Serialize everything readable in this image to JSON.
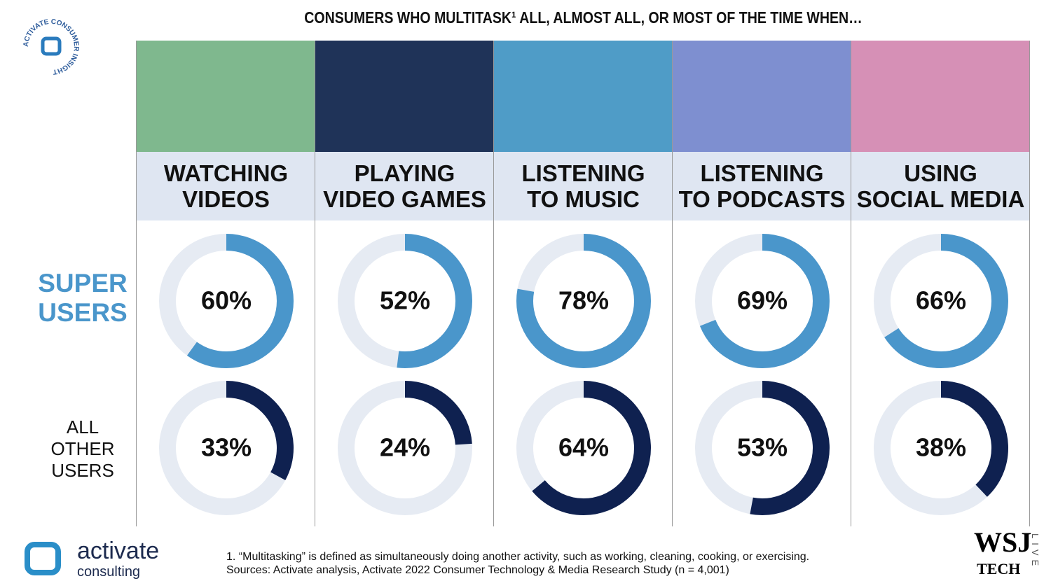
{
  "chart_data": {
    "type": "donut",
    "title": "CONSUMERS WHO MULTITASK¹ ALL, ALMOST ALL, OR MOST OF THE TIME WHEN…",
    "categories": [
      "WATCHING\nVIDEOS",
      "PLAYING\nVIDEO GAMES",
      "LISTENING\nTO MUSIC",
      "LISTENING\nTO PODCASTS",
      "USING\nSOCIAL MEDIA"
    ],
    "series": [
      {
        "name": "SUPER\nUSERS",
        "color": "#4a96cb",
        "values": [
          60,
          52,
          78,
          69,
          66
        ],
        "value_labels": [
          "60%",
          "52%",
          "78%",
          "69%",
          "66%"
        ]
      },
      {
        "name": "ALL\nOTHER\nUSERS",
        "color": "#0f2150",
        "values": [
          33,
          24,
          64,
          53,
          38
        ],
        "value_labels": [
          "33%",
          "24%",
          "64%",
          "53%",
          "38%"
        ]
      }
    ],
    "ylim": [
      0,
      100
    ],
    "track_color": "#e6ebf3"
  },
  "footnote": "1. “Multitasking” is defined as simultaneously doing another activity, such as working, cleaning, cooking, or exercising.",
  "sources": "Sources: Activate analysis, Activate 2022 Consumer Technology & Media Research Study (n = 4,001)",
  "badge": "ACTIVATE CONSUMER INSIGHT",
  "logo": {
    "name": "activate",
    "sub": "consulting"
  },
  "partner": {
    "name": "WSJ",
    "sub": "TECH",
    "tag": "LIVE"
  }
}
